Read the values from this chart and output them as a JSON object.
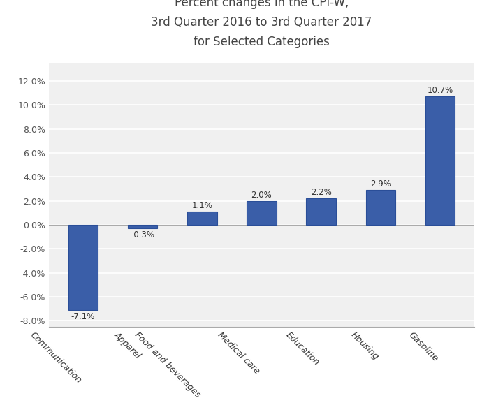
{
  "categories": [
    "Communication",
    "Apparel",
    "Food and beverages",
    "Medical care",
    "Education",
    "Housing",
    "Gasoline"
  ],
  "values": [
    -7.1,
    -0.3,
    1.1,
    2.0,
    2.2,
    2.9,
    10.7
  ],
  "bar_color": "#3a5ea8",
  "bar_edge_color": "#2a4e98",
  "title_line1": "Percent changes in the CPI-W,",
  "title_line2": "3rd Quarter 2016 to 3rd Quarter 2017",
  "title_line3": "for Selected Categories",
  "ylim": [
    -8.5,
    13.5
  ],
  "yticks": [
    -8.0,
    -6.0,
    -4.0,
    -2.0,
    0.0,
    2.0,
    4.0,
    6.0,
    8.0,
    10.0,
    12.0
  ],
  "ytick_labels": [
    "-8.0%",
    "-6.0%",
    "-4.0%",
    "-2.0%",
    "0.0%",
    "2.0%",
    "4.0%",
    "6.0%",
    "8.0%",
    "10.0%",
    "12.0%"
  ],
  "background_color": "#f0f0f0",
  "plot_bg_color": "#f0f0f0",
  "grid_color": "#ffffff",
  "title_fontsize": 12,
  "tick_fontsize": 9,
  "label_fontsize": 8.5
}
